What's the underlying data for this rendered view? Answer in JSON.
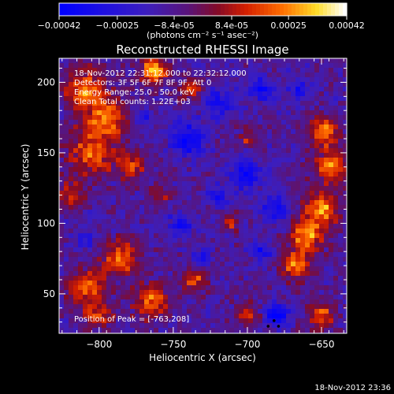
{
  "colors": {
    "background": "#000000",
    "axis": "#ffffff",
    "text": "#ffffff",
    "marker": "#000000"
  },
  "colorbar": {
    "ticks": [
      "-0.00042",
      "-0.00025",
      "-8.4e-05",
      "8.4e-05",
      "0.00025",
      "0.00042"
    ],
    "units_label": "(photons cm⁻² s⁻¹ asec⁻²)",
    "range": [
      -0.00042,
      0.00042
    ],
    "colormap": "blue-purple-red-orange-yellow-white"
  },
  "plot": {
    "title": "Reconstructed RHESSI Image",
    "info_lines": [
      "18-Nov-2012 22:31:12.000 to 22:32:12.000",
      "Detectors: 3F 5F 6F 7F 8F 9F, Att 0",
      "Energy Range: 25.0 - 50.0 keV",
      "Clean    Total counts: 1.22E+03"
    ],
    "peak_text": "Position of Peak = [-763,208]",
    "footer": "18-Nov-2012 23:36"
  },
  "chart_data": {
    "type": "heatmap",
    "title": "Reconstructed RHESSI Image",
    "xlabel": "Heliocentric X (arcsec)",
    "ylabel": "Heliocentric Y (arcsec)",
    "xlim": [
      -827,
      -633
    ],
    "ylim": [
      22,
      217
    ],
    "x_ticks": [
      -800,
      -750,
      -700,
      -650
    ],
    "x_tick_labels": [
      "−800",
      "−750",
      "−700",
      "−650"
    ],
    "y_ticks": [
      50,
      100,
      150,
      200
    ],
    "y_tick_labels": [
      "50",
      "100",
      "150",
      "200"
    ],
    "colorbar_range": [
      -0.00042,
      0.00042
    ],
    "peak_position": [
      -763,
      208
    ],
    "grid": false,
    "hot_regions": [
      {
        "x": -810,
        "y": 195,
        "r": 14,
        "v": 0.75
      },
      {
        "x": -795,
        "y": 175,
        "r": 14,
        "v": 0.8
      },
      {
        "x": -805,
        "y": 150,
        "r": 16,
        "v": 0.7
      },
      {
        "x": -778,
        "y": 140,
        "r": 10,
        "v": 0.6
      },
      {
        "x": -820,
        "y": 120,
        "r": 10,
        "v": 0.55
      },
      {
        "x": -785,
        "y": 75,
        "r": 12,
        "v": 0.75
      },
      {
        "x": -808,
        "y": 55,
        "r": 13,
        "v": 0.7
      },
      {
        "x": -800,
        "y": 35,
        "r": 10,
        "v": 0.55
      },
      {
        "x": -763,
        "y": 208,
        "r": 9,
        "v": 1.0
      },
      {
        "x": -738,
        "y": 195,
        "r": 8,
        "v": 0.6
      },
      {
        "x": -760,
        "y": 120,
        "r": 8,
        "v": 0.45
      },
      {
        "x": -765,
        "y": 45,
        "r": 12,
        "v": 0.7
      },
      {
        "x": -735,
        "y": 60,
        "r": 9,
        "v": 0.6
      },
      {
        "x": -700,
        "y": 160,
        "r": 7,
        "v": 0.45
      },
      {
        "x": -712,
        "y": 100,
        "r": 6,
        "v": 0.45
      },
      {
        "x": -648,
        "y": 165,
        "r": 10,
        "v": 0.85
      },
      {
        "x": -643,
        "y": 140,
        "r": 11,
        "v": 0.8
      },
      {
        "x": -650,
        "y": 110,
        "r": 12,
        "v": 0.9
      },
      {
        "x": -660,
        "y": 90,
        "r": 11,
        "v": 0.85
      },
      {
        "x": -668,
        "y": 70,
        "r": 10,
        "v": 0.75
      },
      {
        "x": -650,
        "y": 35,
        "r": 9,
        "v": 0.7
      },
      {
        "x": -700,
        "y": 35,
        "r": 7,
        "v": 0.55
      }
    ],
    "cold_regions": [
      {
        "x": -740,
        "y": 160,
        "r": 12,
        "v": -0.7
      },
      {
        "x": -720,
        "y": 185,
        "r": 10,
        "v": -0.6
      },
      {
        "x": -690,
        "y": 195,
        "r": 9,
        "v": -0.6
      },
      {
        "x": -700,
        "y": 135,
        "r": 11,
        "v": -0.65
      },
      {
        "x": -745,
        "y": 100,
        "r": 8,
        "v": -0.55
      },
      {
        "x": -680,
        "y": 110,
        "r": 9,
        "v": -0.6
      },
      {
        "x": -690,
        "y": 80,
        "r": 8,
        "v": -0.5
      },
      {
        "x": -730,
        "y": 75,
        "r": 6,
        "v": -0.5
      },
      {
        "x": -720,
        "y": 120,
        "r": 7,
        "v": -0.5
      },
      {
        "x": -770,
        "y": 175,
        "r": 6,
        "v": -0.5
      },
      {
        "x": -680,
        "y": 35,
        "r": 7,
        "v": -0.95
      },
      {
        "x": -665,
        "y": 195,
        "r": 7,
        "v": -0.55
      },
      {
        "x": -810,
        "y": 88,
        "r": 6,
        "v": -0.45
      }
    ]
  }
}
